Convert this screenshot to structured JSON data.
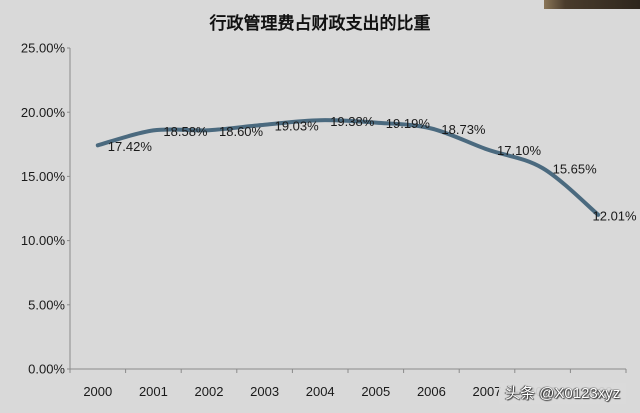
{
  "chart_data": {
    "type": "line",
    "title": "行政管理费占财政支出的比重",
    "categories": [
      "2000",
      "2001",
      "2002",
      "2003",
      "2004",
      "2005",
      "2006",
      "2007",
      "2008",
      "2009"
    ],
    "series": [
      {
        "values": [
          17.42,
          18.58,
          18.6,
          19.03,
          19.38,
          19.19,
          18.73,
          17.1,
          15.65,
          12.01
        ],
        "data_labels": [
          "17.42%",
          "18.58%",
          "18.60%",
          "19.03%",
          "19.38%",
          "19.19%",
          "18.73%",
          "17.10%",
          "15.65%",
          "12.01%"
        ],
        "color": "#4b6a7f"
      }
    ],
    "ylim": [
      0,
      25
    ],
    "y_ticks": [
      0,
      5,
      10,
      15,
      20,
      25
    ],
    "y_tick_labels": [
      "0.00%",
      "5.00%",
      "10.00%",
      "15.00%",
      "20.00%",
      "25.00%"
    ],
    "smooth": true,
    "markers": false,
    "grid": false,
    "legend": "none"
  },
  "watermark": {
    "text": "头条 @X0123xyz"
  },
  "colors": {
    "background": "#d9d9d9",
    "text": "#1a1a1a",
    "axis": "#8a8a8a"
  }
}
